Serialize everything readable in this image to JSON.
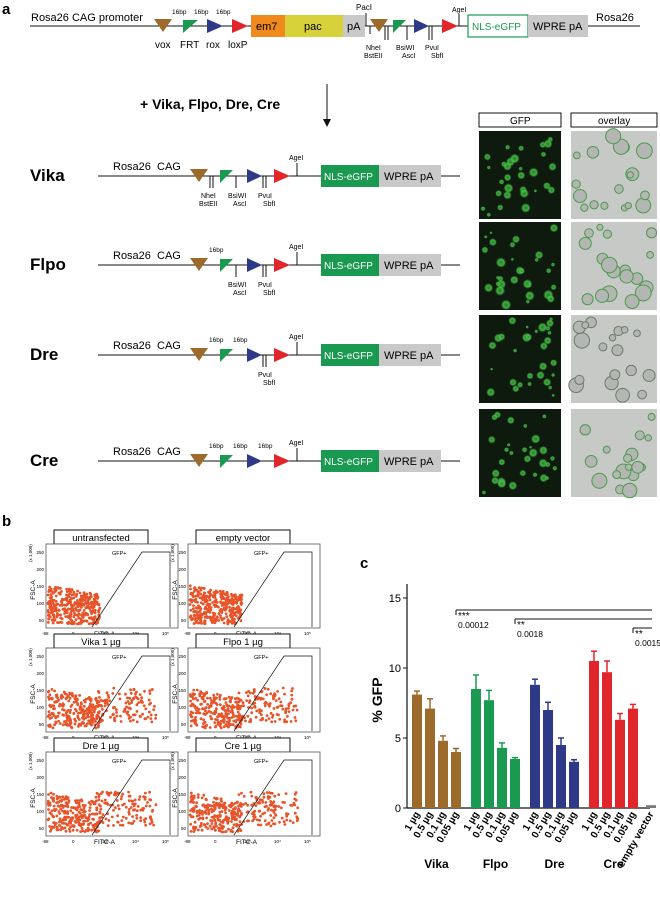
{
  "panel_a": {
    "letter": "a",
    "construct": {
      "left_label": "Rosa26 CAG promoter",
      "right_label": "Rosa26",
      "site_labels": [
        "vox",
        "FRT",
        "rox",
        "loxP"
      ],
      "spacer_label": "16bp",
      "em7": "em7",
      "pac": "pac",
      "pA": "pA",
      "pacI": "PacI",
      "ageI": "AgeI",
      "nheI": "NheI",
      "bstEII": "BstEII",
      "bsiWI": "BsiWI",
      "ascI": "AscI",
      "pvuI": "PvuI",
      "sbfI": "SbfI",
      "nls_egfp": "NLS-eGFP",
      "wpre_pa": "WPRE pA"
    },
    "treatment_label": "+ Vika, Flpo, Dre, Cre",
    "image_headers": {
      "gfp": "GFP",
      "overlay": "overlay"
    },
    "rows": [
      {
        "name": "Vika",
        "left": "Rosa26",
        "promoter": "CAG"
      },
      {
        "name": "Flpo",
        "left": "Rosa26",
        "promoter": "CAG"
      },
      {
        "name": "Dre",
        "left": "Rosa26",
        "promoter": "CAG"
      },
      {
        "name": "Cre",
        "left": "Rosa26",
        "promoter": "CAG"
      }
    ]
  },
  "panel_b": {
    "letter": "b",
    "plots": [
      {
        "title": "untransfected"
      },
      {
        "title": "empty vector"
      },
      {
        "title": "Vika 1 µg"
      },
      {
        "title": "Flpo 1 µg"
      },
      {
        "title": "Dre 1 µg"
      },
      {
        "title": "Cre 1 µg"
      }
    ],
    "gate_label": "GFP+",
    "y_axis_label": "FSC-A",
    "x_axis_label": "FITC-A",
    "y_unit": "(x 1,000)",
    "y_ticks": [
      "250",
      "200",
      "150",
      "100",
      "50"
    ],
    "x_ticks": [
      "-98",
      "0",
      "10³",
      "10⁴",
      "10⁵"
    ],
    "dot_color": "#e8542a"
  },
  "chart_data": {
    "type": "bar",
    "panel_letter": "c",
    "ylabel": "% GFP",
    "ylim": [
      0,
      16
    ],
    "yticks": [
      0,
      5,
      10,
      15
    ],
    "categories": [
      "1 µg",
      "0.5 µg",
      "0.1 µg",
      "0.05 µg"
    ],
    "series": [
      {
        "name": "Vika",
        "color": "#9c6b2c",
        "values": [
          8.1,
          7.1,
          4.8,
          4.0
        ],
        "errors": [
          0.25,
          0.7,
          0.35,
          0.25
        ]
      },
      {
        "name": "Flpo",
        "color": "#1a9a50",
        "values": [
          8.5,
          7.7,
          4.3,
          3.5
        ],
        "errors": [
          1.0,
          0.7,
          0.35,
          0.1
        ]
      },
      {
        "name": "Dre",
        "color": "#2e3a87",
        "values": [
          8.8,
          7.0,
          4.5,
          3.3
        ],
        "errors": [
          0.4,
          0.55,
          0.5,
          0.15
        ]
      },
      {
        "name": "Cre",
        "color": "#e0262b",
        "values": [
          10.5,
          9.7,
          6.3,
          7.1
        ],
        "errors": [
          0.7,
          0.8,
          0.45,
          0.3
        ]
      }
    ],
    "extra_bar": {
      "label": "empty vector",
      "value": 0.2,
      "color": "#7a7a7a"
    },
    "significance": [
      {
        "stars": "***",
        "p": "0.00012"
      },
      {
        "stars": "**",
        "p": "0.0018"
      },
      {
        "stars": "**",
        "p": "0.0015"
      }
    ]
  }
}
